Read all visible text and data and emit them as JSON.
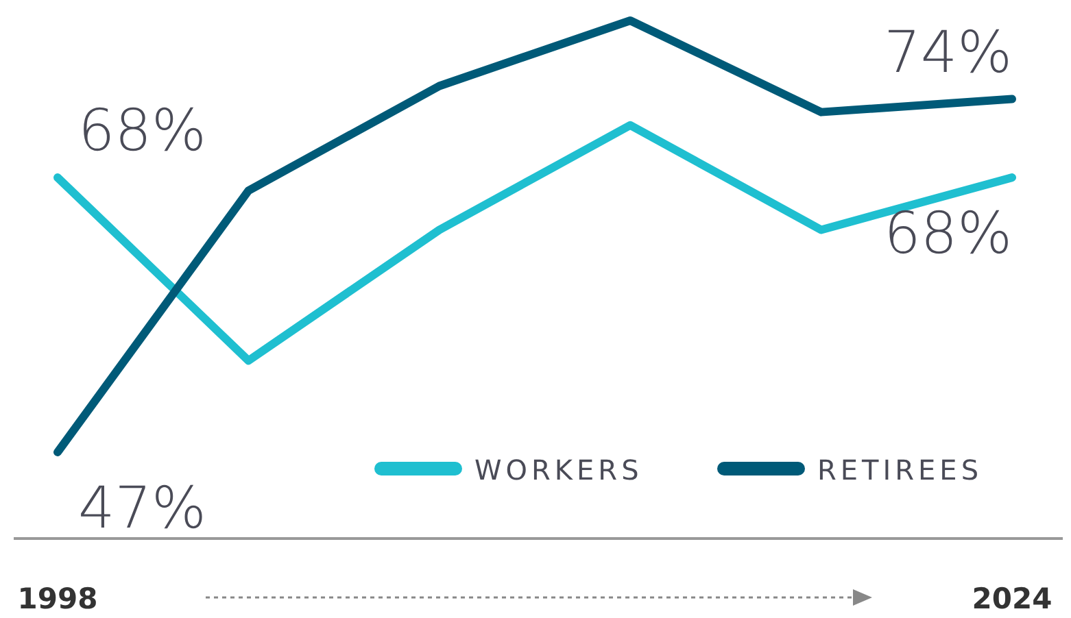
{
  "chart_data": {
    "type": "line",
    "categories": [
      "1998",
      null,
      null,
      null,
      null,
      "2024"
    ],
    "series": [
      {
        "name": "WORKERS",
        "color": "#1fbfd0",
        "values": [
          68,
          54,
          64,
          72,
          64,
          68
        ],
        "value_labels": [
          "68%",
          null,
          null,
          null,
          null,
          "68%"
        ]
      },
      {
        "name": "RETIREES",
        "color": "#005a78",
        "values": [
          47,
          67,
          75,
          80,
          73,
          74
        ],
        "value_labels": [
          "47%",
          null,
          null,
          null,
          null,
          "74%"
        ]
      }
    ],
    "legend": "bottom right",
    "marker": "none",
    "line_style": "solid"
  }
}
